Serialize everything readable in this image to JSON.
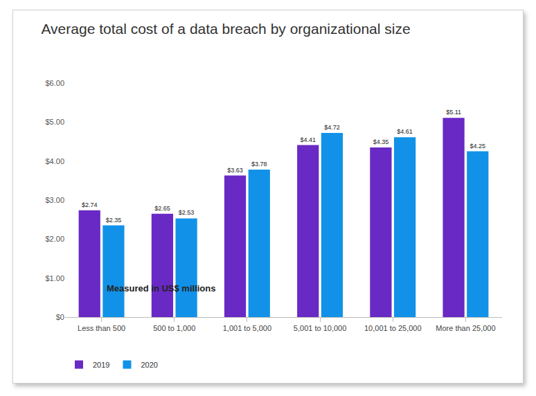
{
  "chart_data": {
    "type": "bar",
    "title": "Average total cost of a data breach by organizational size",
    "subtitle": "Measured in US$ millions",
    "categories": [
      "Less than 500",
      "500 to 1,000",
      "1,001 to 5,000",
      "5,001 to 10,000",
      "10,001 to 25,000",
      "More than 25,000"
    ],
    "series": [
      {
        "name": "2019",
        "color": "#6929c4",
        "values": [
          2.74,
          2.65,
          3.63,
          4.41,
          4.35,
          5.11
        ],
        "value_labels": [
          "$2.74",
          "$2.65",
          "$3.63",
          "$4.41",
          "$4.35",
          "$5.11"
        ]
      },
      {
        "name": "2020",
        "color": "#1192e8",
        "values": [
          2.35,
          2.53,
          3.78,
          4.72,
          4.61,
          4.25
        ],
        "value_labels": [
          "$2.35",
          "$2.53",
          "$3.78",
          "$4.72",
          "$4.61",
          "$4.25"
        ]
      }
    ],
    "ylim": [
      0,
      6
    ],
    "yticks": [
      {
        "value": 0,
        "label": "$0"
      },
      {
        "value": 1,
        "label": "$1.00"
      },
      {
        "value": 2,
        "label": "$2.00"
      },
      {
        "value": 3,
        "label": "$3.00"
      },
      {
        "value": 4,
        "label": "$4.00"
      },
      {
        "value": 5,
        "label": "$5.00"
      },
      {
        "value": 6,
        "label": "$6.00"
      }
    ],
    "grid": false,
    "data_labels": true,
    "legend": "bottom left"
  }
}
